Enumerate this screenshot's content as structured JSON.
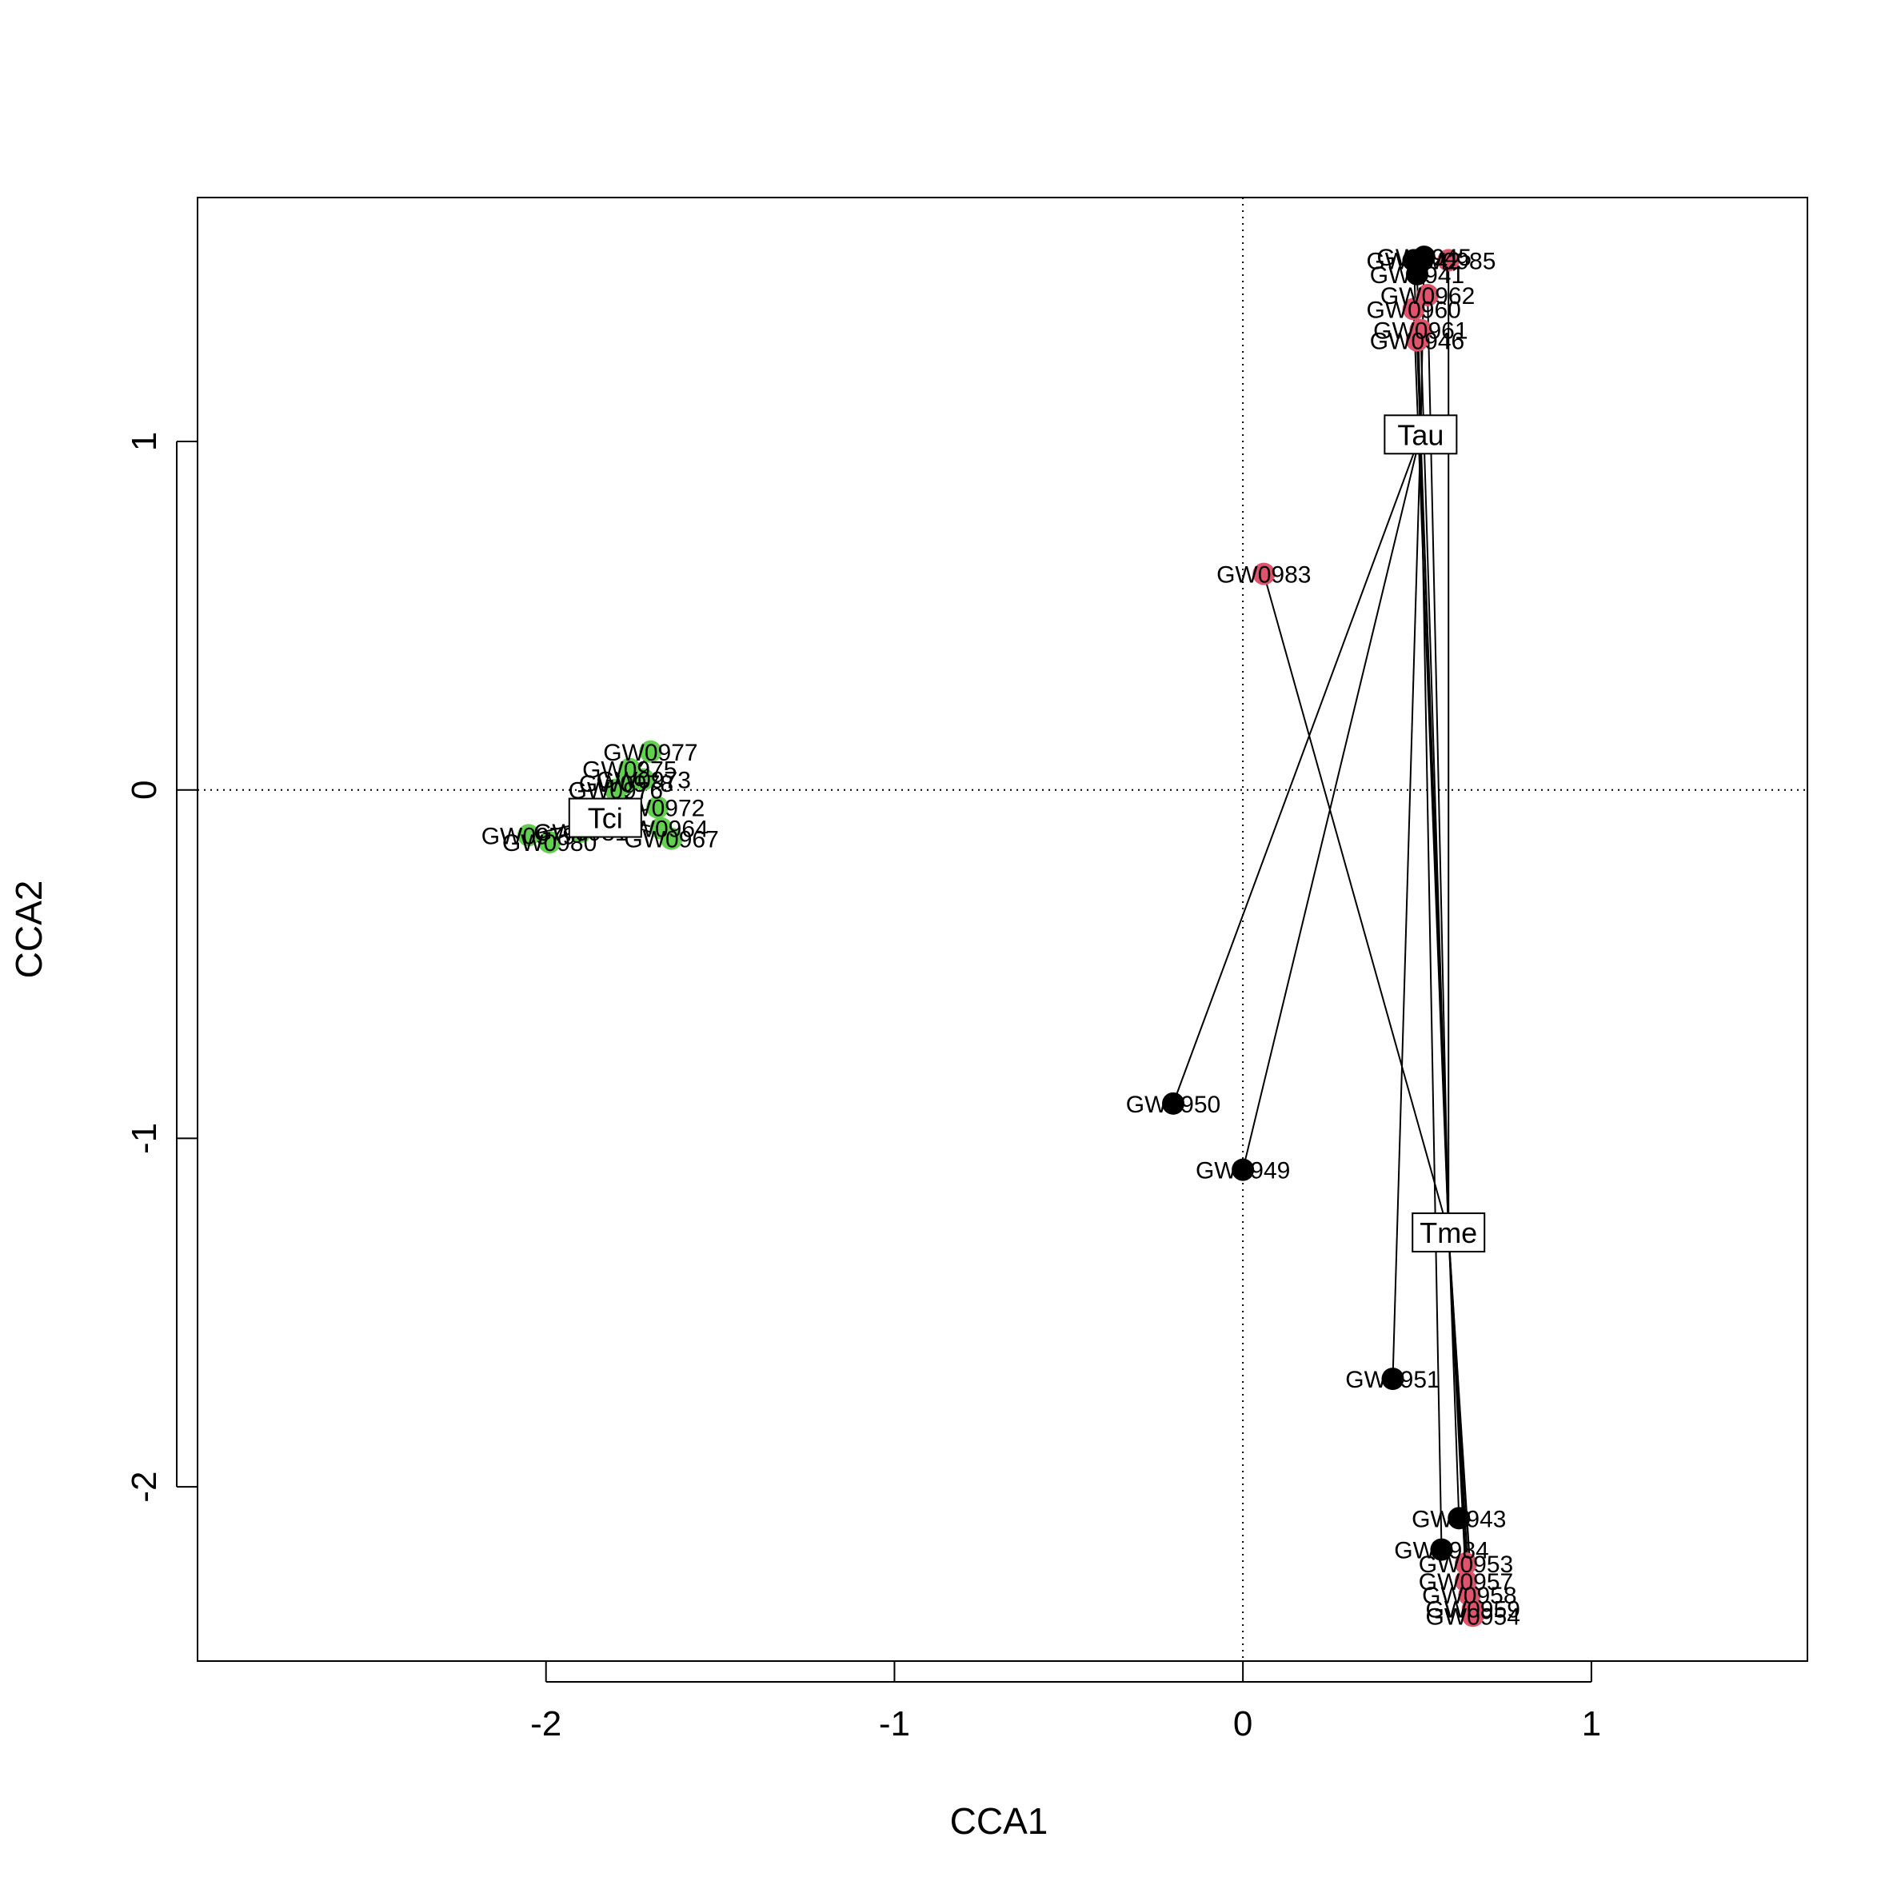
{
  "chart_data": {
    "type": "scatter",
    "xlabel": "CCA1",
    "ylabel": "CCA2",
    "xlim": [
      -3.0,
      1.62
    ],
    "ylim": [
      -2.5,
      1.7
    ],
    "xticks": [
      -2,
      -1,
      0,
      1
    ],
    "yticks": [
      -2,
      -1,
      0,
      1
    ],
    "xtick_labels": [
      "-2",
      "-1",
      "0",
      "1"
    ],
    "ytick_labels": [
      "-2",
      "-1",
      "0",
      "1"
    ],
    "reference_lines": {
      "x": 0,
      "y": 0,
      "style": "dotted"
    },
    "grid": false,
    "legend": "none",
    "centroids": [
      {
        "label": "Tau",
        "x": 0.51,
        "y": 1.02
      },
      {
        "label": "Tme",
        "x": 0.59,
        "y": -1.27
      },
      {
        "label": "Tci",
        "x": -1.83,
        "y": -0.08
      }
    ],
    "series": [
      {
        "color": "#000000",
        "points": [
          {
            "label": "GW0950",
            "x": -0.2,
            "y": -0.9,
            "centroid": "Tau"
          },
          {
            "label": "GW0949",
            "x": 0.0,
            "y": -1.09,
            "centroid": "Tau"
          },
          {
            "label": "GW0951",
            "x": 0.43,
            "y": -1.69,
            "centroid": "Tau"
          },
          {
            "label": "GW0943",
            "x": 0.62,
            "y": -2.09,
            "centroid": "Tau"
          },
          {
            "label": "GW0984",
            "x": 0.57,
            "y": -2.18,
            "centroid": "Tau"
          },
          {
            "label": "GW0945",
            "x": 0.52,
            "y": 1.53,
            "centroid": "Tau"
          },
          {
            "label": "GW0941",
            "x": 0.5,
            "y": 1.48,
            "centroid": "Tau"
          },
          {
            "label": "GW0942",
            "x": 0.49,
            "y": 1.52,
            "centroid": "Tau"
          }
        ]
      },
      {
        "color": "#DF536B",
        "points": [
          {
            "label": "GW0983",
            "x": 0.06,
            "y": 0.62,
            "centroid": "Tme"
          },
          {
            "label": "GW0985",
            "x": 0.59,
            "y": 1.52,
            "centroid": "Tme"
          },
          {
            "label": "GW0962",
            "x": 0.53,
            "y": 1.42,
            "centroid": "Tme"
          },
          {
            "label": "GW0960",
            "x": 0.49,
            "y": 1.38,
            "centroid": "Tme"
          },
          {
            "label": "GW0961",
            "x": 0.51,
            "y": 1.32,
            "centroid": "Tme"
          },
          {
            "label": "GW0946",
            "x": 0.5,
            "y": 1.29,
            "centroid": "Tme"
          },
          {
            "label": "GW0953",
            "x": 0.64,
            "y": -2.22,
            "centroid": "Tme"
          },
          {
            "label": "GW0957",
            "x": 0.64,
            "y": -2.27,
            "centroid": "Tme"
          },
          {
            "label": "GW0958",
            "x": 0.65,
            "y": -2.31,
            "centroid": "Tme"
          },
          {
            "label": "GW0959",
            "x": 0.66,
            "y": -2.35,
            "centroid": "Tme"
          },
          {
            "label": "GW0954",
            "x": 0.66,
            "y": -2.37,
            "centroid": "Tme"
          }
        ]
      },
      {
        "color": "#61D04F",
        "points": [
          {
            "label": "GW0977",
            "x": -1.7,
            "y": 0.11,
            "centroid": "Tci"
          },
          {
            "label": "GW0975",
            "x": -1.76,
            "y": 0.06,
            "centroid": "Tci"
          },
          {
            "label": "GW0973",
            "x": -1.72,
            "y": 0.03,
            "centroid": "Tci"
          },
          {
            "label": "GW0978",
            "x": -1.77,
            "y": 0.02,
            "centroid": "Tci"
          },
          {
            "label": "GW0976",
            "x": -1.8,
            "y": 0.0,
            "centroid": "Tci"
          },
          {
            "label": "GW0972",
            "x": -1.68,
            "y": -0.05,
            "centroid": "Tci"
          },
          {
            "label": "GW0964",
            "x": -1.67,
            "y": -0.11,
            "centroid": "Tci"
          },
          {
            "label": "GW0967",
            "x": -1.64,
            "y": -0.14,
            "centroid": "Tci"
          },
          {
            "label": "GW0979",
            "x": -2.05,
            "y": -0.13,
            "centroid": "Tci"
          },
          {
            "label": "GW0980",
            "x": -1.99,
            "y": -0.15,
            "centroid": "Tci"
          },
          {
            "label": "GW0981",
            "x": -1.9,
            "y": -0.12,
            "centroid": "Tci"
          }
        ]
      }
    ]
  }
}
